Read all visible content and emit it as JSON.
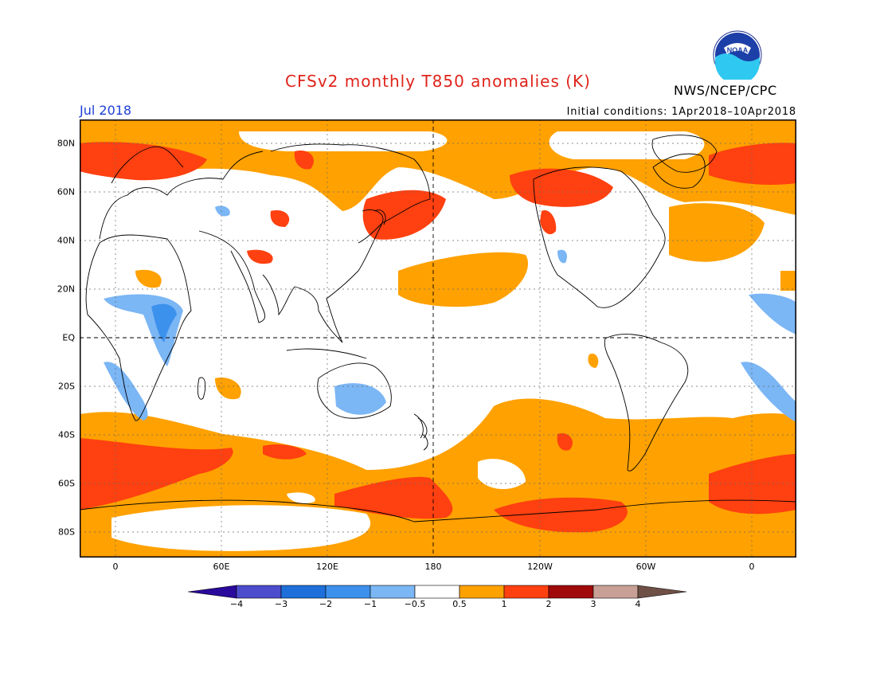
{
  "header": {
    "title": "CFSv2 monthly T850 anomalies (K)",
    "agency": "NWS/NCEP/CPC",
    "month": "Jul 2018",
    "initial_conditions": "Initial conditions: 1Apr2018–10Apr2018",
    "logo_text": "NOAA"
  },
  "axes": {
    "lon_labels": [
      "0",
      "60E",
      "120E",
      "180",
      "120W",
      "60W",
      "0"
    ],
    "lat_labels": [
      "80N",
      "60N",
      "40N",
      "20N",
      "EQ",
      "20S",
      "40S",
      "60S",
      "80S"
    ]
  },
  "colorbar": {
    "labels": [
      "−4",
      "−3",
      "−2",
      "−1",
      "−0.5",
      "0.5",
      "1",
      "2",
      "3",
      "4"
    ],
    "colors": [
      "#2a0a9c",
      "#4c4ccd",
      "#1e6fd9",
      "#3c91ec",
      "#7bb6f5",
      "#ffffff",
      "#ffa100",
      "#ff4010",
      "#a00a0a",
      "#c8a096",
      "#6e5046"
    ]
  },
  "colors": {
    "warm1": "#ffa100",
    "warm2": "#ff4010",
    "cool1": "#7bb6f5",
    "cool2": "#3c91ec",
    "title": "#e0241b",
    "month": "#1d3fd6"
  }
}
